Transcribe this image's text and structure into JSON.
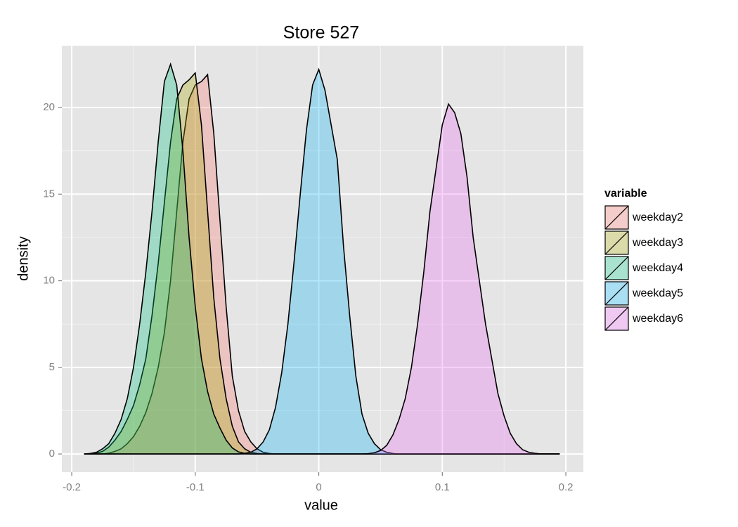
{
  "chart_data": {
    "type": "density",
    "title": "Store 527",
    "x_label": "value",
    "y_label": "density",
    "legend_title": "variable",
    "x": [
      -0.19,
      -0.185,
      -0.18,
      -0.175,
      -0.17,
      -0.165,
      -0.16,
      -0.155,
      -0.15,
      -0.145,
      -0.14,
      -0.135,
      -0.13,
      -0.125,
      -0.12,
      -0.115,
      -0.11,
      -0.105,
      -0.1,
      -0.095,
      -0.09,
      -0.085,
      -0.08,
      -0.075,
      -0.07,
      -0.065,
      -0.06,
      -0.055,
      -0.05,
      -0.045,
      -0.04,
      -0.035,
      -0.03,
      -0.025,
      -0.02,
      -0.015,
      -0.01,
      -0.005,
      0,
      0.005,
      0.01,
      0.015,
      0.02,
      0.025,
      0.03,
      0.035,
      0.04,
      0.045,
      0.05,
      0.055,
      0.06,
      0.065,
      0.07,
      0.075,
      0.08,
      0.085,
      0.09,
      0.095,
      0.1,
      0.105,
      0.11,
      0.115,
      0.12,
      0.125,
      0.13,
      0.135,
      0.14,
      0.145,
      0.15,
      0.155,
      0.16,
      0.165,
      0.17,
      0.175,
      0.18,
      0.185,
      0.19,
      0.195
    ],
    "series": [
      {
        "name": "weekday2",
        "color": "#F8766D",
        "values": [
          0,
          0,
          0,
          0,
          0.05,
          0.15,
          0.3,
          0.6,
          1.0,
          1.6,
          2.4,
          3.5,
          5,
          7,
          10,
          14,
          18,
          20.5,
          21.3,
          21.5,
          21.9,
          18.5,
          13.5,
          8.5,
          4.5,
          2.5,
          1.3,
          0.7,
          0.3,
          0.1,
          0.03,
          0,
          0,
          0,
          0,
          0,
          0,
          0,
          0,
          0,
          0,
          0,
          0,
          0,
          0,
          0,
          0,
          0,
          0,
          0,
          0,
          0,
          0,
          0,
          0,
          0,
          0,
          0,
          0,
          0,
          0,
          0,
          0,
          0,
          0,
          0,
          0,
          0,
          0,
          0,
          0,
          0,
          0,
          0,
          0,
          0,
          0,
          0
        ]
      },
      {
        "name": "weekday3",
        "color": "#A3A500",
        "values": [
          0,
          0,
          0.05,
          0.15,
          0.4,
          0.8,
          1.3,
          2.0,
          2.8,
          4.0,
          5.5,
          8,
          11,
          14.5,
          18,
          20.5,
          21.3,
          21.6,
          22,
          19,
          14,
          9,
          5.5,
          3.2,
          1.6,
          0.7,
          0.3,
          0.1,
          0.03,
          0,
          0,
          0,
          0,
          0,
          0,
          0,
          0,
          0,
          0,
          0,
          0,
          0,
          0,
          0,
          0,
          0,
          0,
          0,
          0,
          0,
          0,
          0,
          0,
          0,
          0,
          0,
          0,
          0,
          0,
          0,
          0,
          0,
          0,
          0,
          0,
          0,
          0,
          0,
          0,
          0,
          0,
          0,
          0,
          0,
          0,
          0,
          0,
          0
        ]
      },
      {
        "name": "weekday4",
        "color": "#00BF7D",
        "values": [
          0,
          0.03,
          0.1,
          0.3,
          0.6,
          1.2,
          2.0,
          3.2,
          5,
          7.5,
          10.5,
          14,
          18,
          21.5,
          22.5,
          21.3,
          17.5,
          12.5,
          8.5,
          5.5,
          3.6,
          2.3,
          1.5,
          0.8,
          0.35,
          0.12,
          0.04,
          0,
          0,
          0,
          0,
          0,
          0,
          0,
          0,
          0,
          0,
          0,
          0,
          0,
          0,
          0,
          0,
          0,
          0,
          0,
          0,
          0,
          0,
          0,
          0,
          0,
          0,
          0,
          0,
          0,
          0,
          0,
          0,
          0,
          0,
          0,
          0,
          0,
          0,
          0,
          0,
          0,
          0,
          0,
          0,
          0,
          0,
          0,
          0,
          0,
          0,
          0
        ]
      },
      {
        "name": "weekday5",
        "color": "#00B0F6",
        "values": [
          0,
          0,
          0,
          0,
          0,
          0,
          0,
          0,
          0,
          0,
          0,
          0,
          0,
          0,
          0,
          0,
          0,
          0,
          0,
          0,
          0,
          0,
          0,
          0,
          0,
          0,
          0.04,
          0.1,
          0.3,
          0.7,
          1.4,
          2.7,
          4.7,
          7.5,
          11.1,
          15,
          18.7,
          21.3,
          22.2,
          21,
          19,
          17,
          12,
          8,
          4.5,
          2.3,
          1.2,
          0.6,
          0.25,
          0.1,
          0.03,
          0,
          0,
          0,
          0,
          0,
          0,
          0,
          0,
          0,
          0,
          0,
          0,
          0,
          0,
          0,
          0,
          0,
          0,
          0,
          0,
          0,
          0,
          0,
          0,
          0,
          0,
          0
        ]
      },
      {
        "name": "weekday6",
        "color": "#E76BF3",
        "values": [
          0,
          0,
          0,
          0,
          0,
          0,
          0,
          0,
          0,
          0,
          0,
          0,
          0,
          0,
          0,
          0,
          0,
          0,
          0,
          0,
          0,
          0,
          0,
          0,
          0,
          0,
          0,
          0,
          0,
          0,
          0,
          0,
          0,
          0,
          0,
          0,
          0,
          0,
          0,
          0,
          0,
          0,
          0,
          0,
          0,
          0,
          0.02,
          0.07,
          0.2,
          0.5,
          1.1,
          2,
          3.2,
          5,
          7.5,
          10.5,
          14,
          16.5,
          19,
          20.2,
          19.7,
          18.5,
          16,
          12.5,
          10,
          7.5,
          5.5,
          3.5,
          2.2,
          1.2,
          0.6,
          0.25,
          0.1,
          0.04,
          0,
          0,
          0,
          0
        ]
      }
    ],
    "xlim": [
      -0.208,
      0.2142
    ],
    "ylim": [
      -1.05,
      23.57
    ],
    "xticks": [
      -0.2,
      -0.1,
      0,
      0.1,
      0.2
    ],
    "yticks": [
      0,
      5,
      10,
      15,
      20
    ],
    "grid": true,
    "legend": "right"
  }
}
